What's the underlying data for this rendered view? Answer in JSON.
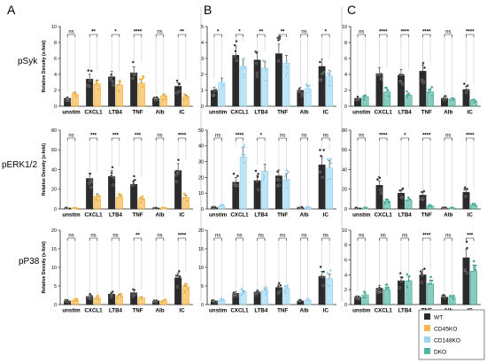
{
  "panel_letters": [
    "A",
    "B",
    "C"
  ],
  "row_labels": [
    "pSyk",
    "pERK1/2",
    "pP38"
  ],
  "ylabel": "Relative Density (x-fold)",
  "legend": {
    "entries": [
      {
        "name": "WT",
        "color": "#2b2b2b"
      },
      {
        "name": "CD45KO",
        "color": "#f2a51e"
      },
      {
        "name": "CD148KO",
        "color": "#87cdf0"
      },
      {
        "name": "DKO",
        "color": "#27a38a"
      }
    ]
  },
  "chart_data": [
    {
      "id": "A1",
      "type": "bar",
      "panel": "A",
      "row": "pSyk",
      "series": [
        "WT",
        "CD45KO"
      ],
      "categories": [
        "unstim",
        "CXCL1",
        "LTB4",
        "TNF",
        "Alb",
        "IC"
      ],
      "ylim": [
        0,
        10
      ],
      "yticks": [
        0,
        2,
        4,
        6,
        8,
        10
      ],
      "values": [
        [
          1.0,
          1.5
        ],
        [
          3.4,
          2.8
        ],
        [
          3.7,
          2.7
        ],
        [
          4.2,
          2.9
        ],
        [
          1.0,
          1.3
        ],
        [
          2.5,
          1.2
        ]
      ],
      "significance": [
        "ns",
        "**",
        "*",
        "****",
        "ns",
        "**"
      ]
    },
    {
      "id": "A2",
      "type": "bar",
      "panel": "A",
      "row": "pERK1/2",
      "series": [
        "WT",
        "CD45KO"
      ],
      "categories": [
        "unstim",
        "CXCL1",
        "LTB4",
        "TNF",
        "Alb",
        "IC"
      ],
      "ylim": [
        0,
        80
      ],
      "yticks": [
        0,
        20,
        40,
        60,
        80
      ],
      "values": [
        [
          1,
          1
        ],
        [
          31,
          13
        ],
        [
          33,
          12
        ],
        [
          25,
          10
        ],
        [
          1,
          1
        ],
        [
          39,
          12
        ]
      ],
      "significance": [
        "ns",
        "***",
        "***",
        "***",
        "ns",
        "****"
      ]
    },
    {
      "id": "A3",
      "type": "bar",
      "panel": "A",
      "row": "pP38",
      "series": [
        "WT",
        "CD45KO"
      ],
      "categories": [
        "unstim",
        "CXCL1",
        "LTB4",
        "TNF",
        "Alb",
        "IC"
      ],
      "ylim": [
        0,
        20
      ],
      "yticks": [
        0,
        5,
        10,
        15,
        20
      ],
      "values": [
        [
          1,
          1.2
        ],
        [
          2.2,
          1.8
        ],
        [
          2.8,
          2.4
        ],
        [
          3.2,
          1.8
        ],
        [
          1,
          1
        ],
        [
          7.2,
          4.8
        ]
      ],
      "significance": [
        "ns",
        "ns",
        "ns",
        "**",
        "ns",
        "****"
      ]
    },
    {
      "id": "B1",
      "type": "bar",
      "panel": "B",
      "row": "pSyk",
      "series": [
        "WT",
        "CD148KO"
      ],
      "categories": [
        "unstim",
        "CXCL1",
        "LTB4",
        "TNF",
        "Alb",
        "IC"
      ],
      "ylim": [
        0,
        5
      ],
      "yticks": [
        0,
        1,
        2,
        3,
        4,
        5
      ],
      "values": [
        [
          1,
          1.5
        ],
        [
          3.2,
          2.5
        ],
        [
          2.9,
          2.4
        ],
        [
          3.3,
          2.7
        ],
        [
          1,
          1.1
        ],
        [
          2.5,
          1.9
        ]
      ],
      "significance": [
        "*",
        "*",
        "**",
        "**",
        "ns",
        "*"
      ]
    },
    {
      "id": "B2",
      "type": "bar",
      "panel": "B",
      "row": "pERK1/2",
      "series": [
        "WT",
        "CD148KO"
      ],
      "categories": [
        "unstim",
        "CXCL1",
        "LTB4",
        "TNF",
        "Alb",
        "IC"
      ],
      "ylim": [
        0,
        50
      ],
      "yticks": [
        0,
        10,
        20,
        30,
        40,
        50
      ],
      "values": [
        [
          1,
          2
        ],
        [
          17,
          33
        ],
        [
          18,
          24
        ],
        [
          21,
          19
        ],
        [
          1,
          1
        ],
        [
          28,
          26
        ]
      ],
      "significance": [
        "ns",
        "****",
        "*",
        "ns",
        "ns",
        "ns"
      ]
    },
    {
      "id": "B3",
      "type": "bar",
      "panel": "B",
      "row": "pP38",
      "series": [
        "WT",
        "CD148KO"
      ],
      "categories": [
        "unstim",
        "CXCL1",
        "LTB4",
        "TNF",
        "Alb",
        "IC"
      ],
      "ylim": [
        0,
        20
      ],
      "yticks": [
        0,
        5,
        10,
        15,
        20
      ],
      "values": [
        [
          1,
          1.3
        ],
        [
          3,
          3.2
        ],
        [
          3.4,
          3.8
        ],
        [
          4.6,
          4.3
        ],
        [
          1,
          1.2
        ],
        [
          7.6,
          7
        ]
      ],
      "significance": [
        "ns",
        "ns",
        "ns",
        "ns",
        "ns",
        "ns"
      ]
    },
    {
      "id": "C1",
      "type": "bar",
      "panel": "C",
      "row": "pSyk",
      "series": [
        "WT",
        "DKO"
      ],
      "categories": [
        "unstim",
        "CXCL1",
        "LTB4",
        "TNF",
        "Alb",
        "IC"
      ],
      "ylim": [
        0,
        10
      ],
      "yticks": [
        0,
        2,
        4,
        6,
        8,
        10
      ],
      "values": [
        [
          1,
          1.2
        ],
        [
          4.1,
          1.8
        ],
        [
          3.9,
          1.4
        ],
        [
          4.4,
          1.8
        ],
        [
          1,
          0.9
        ],
        [
          2.1,
          0.7
        ]
      ],
      "significance": [
        "ns",
        "****",
        "****",
        "****",
        "ns",
        "****"
      ]
    },
    {
      "id": "C2",
      "type": "bar",
      "panel": "C",
      "row": "pERK1/2",
      "series": [
        "WT",
        "DKO"
      ],
      "categories": [
        "unstim",
        "CXCL1",
        "LTB4",
        "TNF",
        "Alb",
        "IC"
      ],
      "ylim": [
        0,
        80
      ],
      "yticks": [
        0,
        20,
        40,
        60,
        80
      ],
      "values": [
        [
          1,
          1
        ],
        [
          24,
          8
        ],
        [
          16,
          9
        ],
        [
          14,
          3
        ],
        [
          1,
          1
        ],
        [
          17,
          4
        ]
      ],
      "significance": [
        "ns",
        "****",
        "*",
        "****",
        "ns",
        "****"
      ]
    },
    {
      "id": "C3",
      "type": "bar",
      "panel": "C",
      "row": "pP38",
      "series": [
        "WT",
        "DKO"
      ],
      "categories": [
        "unstim",
        "CXCL1",
        "LTB4",
        "TNF",
        "Alb",
        "IC"
      ],
      "ylim": [
        0,
        10
      ],
      "yticks": [
        0,
        2,
        4,
        6,
        8,
        10
      ],
      "values": [
        [
          1,
          1.3
        ],
        [
          2.2,
          2
        ],
        [
          3.2,
          3.2
        ],
        [
          4,
          2.8
        ],
        [
          1,
          1
        ],
        [
          6.3,
          4.5
        ]
      ],
      "significance": [
        "ns",
        "ns",
        "ns",
        "****",
        "ns",
        "***"
      ]
    }
  ]
}
